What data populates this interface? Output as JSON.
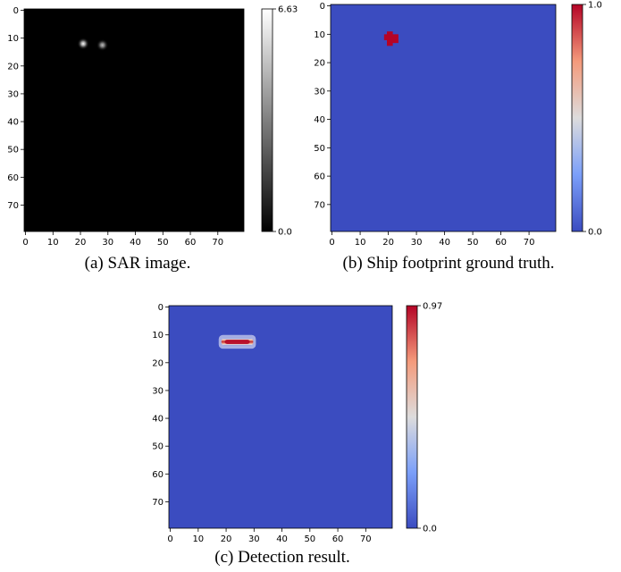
{
  "chart_data": [
    {
      "type": "heatmap",
      "caption": "(a) SAR image.",
      "colormap": "gray",
      "xticks": [
        "0",
        "10",
        "20",
        "30",
        "40",
        "50",
        "60",
        "70"
      ],
      "yticks": [
        "0",
        "10",
        "20",
        "30",
        "40",
        "50",
        "60",
        "70"
      ],
      "xlim": [
        0,
        80
      ],
      "ylim": [
        0,
        80
      ],
      "colorbar": {
        "min": 0.0,
        "max": 6.63,
        "min_label": "0.0",
        "max_label": "6.63"
      },
      "features": [
        {
          "kind": "bright-spot",
          "x": 21,
          "y": 12,
          "value": 6.63
        },
        {
          "kind": "bright-spot",
          "x": 28,
          "y": 12.5,
          "value": 5.0
        }
      ]
    },
    {
      "type": "heatmap",
      "caption": "(b) Ship footprint ground truth.",
      "colormap": "coolwarm",
      "xticks": [
        "0",
        "10",
        "20",
        "30",
        "40",
        "50",
        "60",
        "70"
      ],
      "yticks": [
        "0",
        "10",
        "20",
        "30",
        "40",
        "50",
        "60",
        "70"
      ],
      "xlim": [
        0,
        80
      ],
      "ylim": [
        0,
        80
      ],
      "colorbar": {
        "min": 0.0,
        "max": 1.0,
        "min_label": "0.0",
        "max_label": "1.0"
      },
      "features": [
        {
          "kind": "footprint",
          "x": 21.5,
          "y": 12,
          "value": 1.0
        }
      ]
    },
    {
      "type": "heatmap",
      "caption": "(c) Detection result.",
      "colormap": "coolwarm",
      "xticks": [
        "0",
        "10",
        "20",
        "30",
        "40",
        "50",
        "60",
        "70"
      ],
      "yticks": [
        "0",
        "10",
        "20",
        "30",
        "40",
        "50",
        "60",
        "70"
      ],
      "xlim": [
        0,
        80
      ],
      "ylim": [
        0,
        80
      ],
      "colorbar": {
        "min": 0.0,
        "max": 0.97,
        "min_label": "0.0",
        "max_label": "0.97"
      },
      "features": [
        {
          "kind": "detection",
          "x_start": 20,
          "x_end": 29,
          "y": 12.5,
          "value": 0.97
        }
      ]
    }
  ]
}
